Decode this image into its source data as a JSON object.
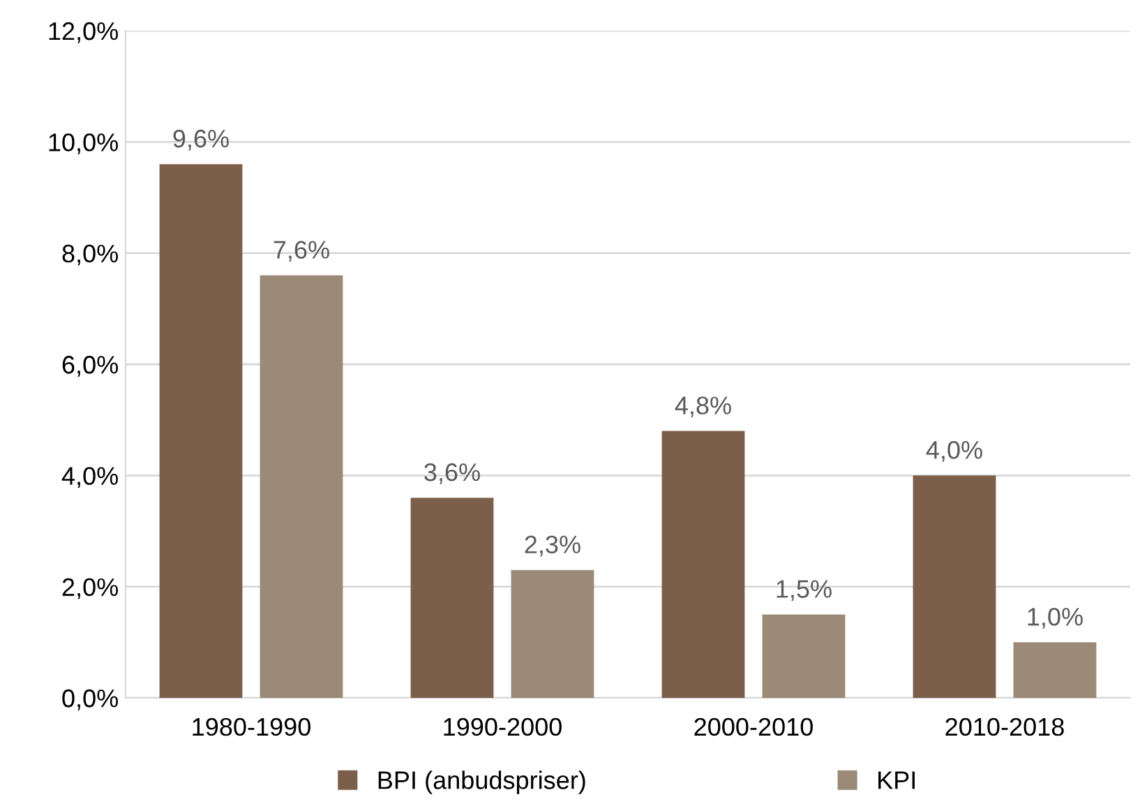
{
  "chart_data": {
    "type": "bar",
    "categories": [
      "1980-1990",
      "1990-2000",
      "2000-2010",
      "2010-2018"
    ],
    "series": [
      {
        "name": "BPI (anbudspriser)",
        "color": "#7b5f4b",
        "values": [
          9.6,
          3.6,
          4.8,
          4.0
        ],
        "value_labels": [
          "9,6%",
          "3,6%",
          "4,8%",
          "4,0%"
        ]
      },
      {
        "name": "KPI",
        "color": "#9b8a78",
        "values": [
          7.6,
          2.3,
          1.5,
          1.0
        ],
        "value_labels": [
          "7,6%",
          "2,3%",
          "1,5%",
          "1,0%"
        ]
      }
    ],
    "ylim": [
      0,
      12
    ],
    "yticks": [
      {
        "value": 0,
        "label": "0,0%"
      },
      {
        "value": 2,
        "label": "2,0%"
      },
      {
        "value": 4,
        "label": "4,0%"
      },
      {
        "value": 6,
        "label": "6,0%"
      },
      {
        "value": 8,
        "label": "8,0%"
      },
      {
        "value": 10,
        "label": "10,0%"
      },
      {
        "value": 12,
        "label": "12,0%"
      }
    ],
    "grid": "y",
    "legend": "bottom"
  }
}
